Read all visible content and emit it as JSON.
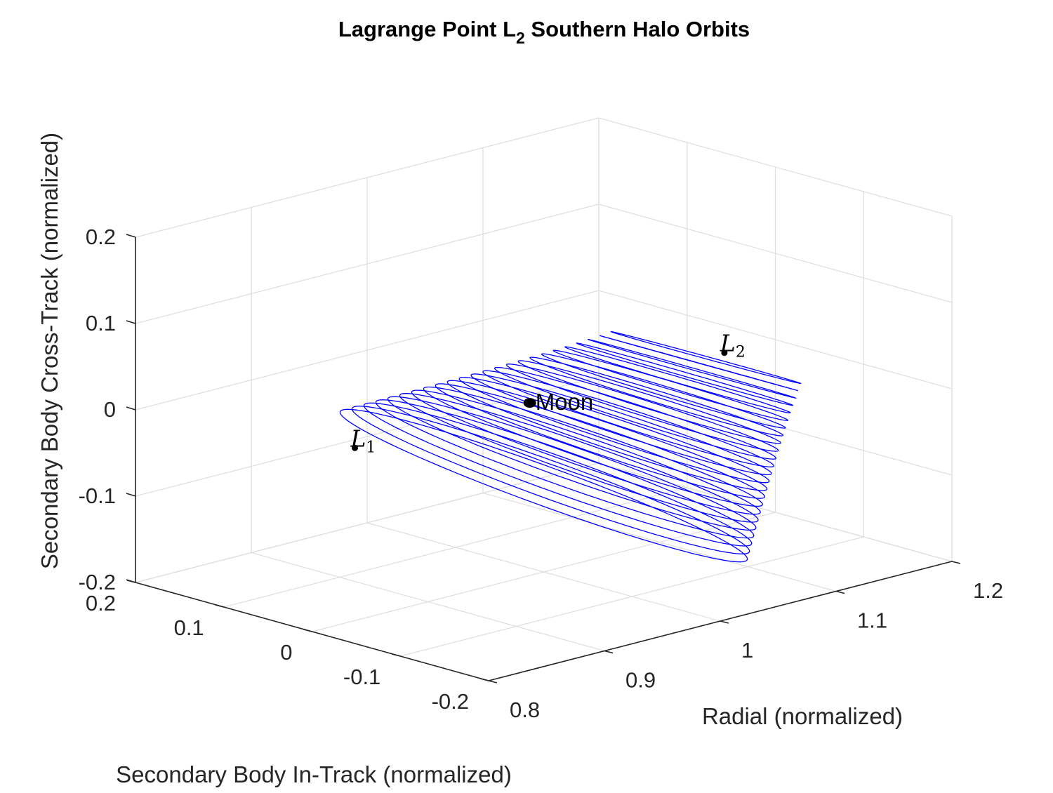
{
  "chart_data": {
    "type": "line",
    "projection": "3d",
    "title": "Lagrange Point L",
    "title_subscript": "2",
    "title_suffix": " Southern Halo Orbits",
    "xlabel": "Radial (normalized)",
    "ylabel": "Secondary Body In-Track (normalized)",
    "zlabel": "Secondary Body Cross-Track (normalized)",
    "xlim": [
      0.8,
      1.2
    ],
    "ylim": [
      -0.2,
      0.2
    ],
    "zlim": [
      -0.2,
      0.2
    ],
    "x_ticks": [
      0.8,
      0.9,
      1.0,
      1.1,
      1.2
    ],
    "x_tick_labels": [
      "0.8",
      "0.9",
      "1",
      "1.1",
      "1.2"
    ],
    "y_ticks": [
      -0.2,
      -0.1,
      0.0,
      0.1,
      0.2
    ],
    "y_tick_labels": [
      "-0.2",
      "-0.1",
      "0",
      "0.1",
      "0.2"
    ],
    "z_ticks": [
      -0.2,
      -0.1,
      0.0,
      0.1,
      0.2
    ],
    "z_tick_labels": [
      "-0.2",
      "-0.1",
      "0",
      "0.1",
      "0.2"
    ],
    "grid": true,
    "series_color": "#0000ff",
    "halo_family": {
      "count": 24,
      "center_x_range": [
        1.0,
        1.14
      ],
      "amp_x_range": [
        0.11,
        0.03
      ],
      "amp_y_range": [
        0.18,
        0.1
      ],
      "z_center_range": [
        -0.1,
        0.0
      ],
      "amp_z_range": [
        0.11,
        0.02
      ]
    },
    "points": [
      {
        "name": "L",
        "sub": "1",
        "x": 0.837,
        "y": 0.0,
        "z": 0.0
      },
      {
        "name": "L",
        "sub": "2",
        "x": 1.156,
        "y": 0.0,
        "z": 0.0
      },
      {
        "name": "Moon",
        "x": 0.988,
        "y": 0.0,
        "z": 0.0
      }
    ]
  }
}
